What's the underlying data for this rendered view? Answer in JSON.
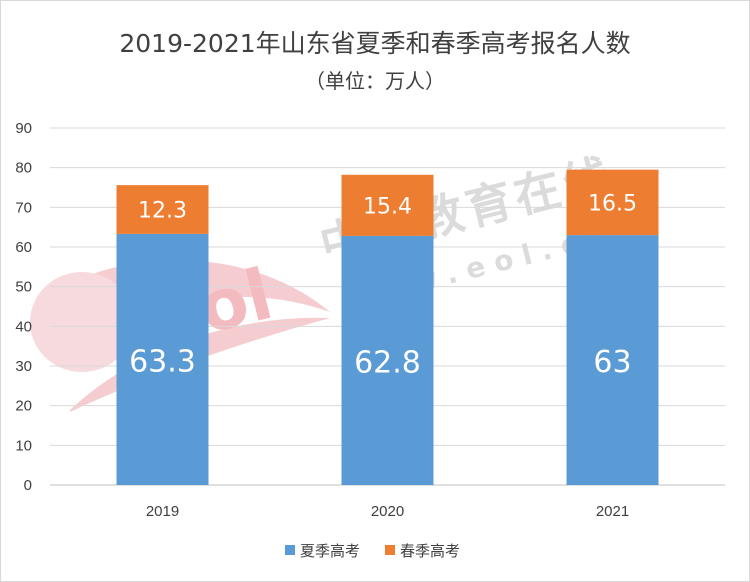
{
  "chart_data": {
    "type": "bar",
    "stacked": true,
    "title": "2019-2021年山东省夏季和春季高考报名人数",
    "subtitle": "（单位：万人）",
    "categories": [
      "2019",
      "2020",
      "2021"
    ],
    "series": [
      {
        "name": "夏季高考",
        "values": [
          63.3,
          62.8,
          63
        ],
        "color": "#5b9bd5"
      },
      {
        "name": "春季高考",
        "values": [
          12.3,
          15.4,
          16.5
        ],
        "color": "#ed7d31"
      }
    ],
    "ylim": [
      0,
      90
    ],
    "yticks": [
      0,
      10,
      20,
      30,
      40,
      50,
      60,
      70,
      80,
      90
    ],
    "grid": true,
    "legend": "bottom"
  },
  "watermark": {
    "text": "中国教育在线",
    "url": "w w w . e o l . c n",
    "logo": "eol"
  }
}
